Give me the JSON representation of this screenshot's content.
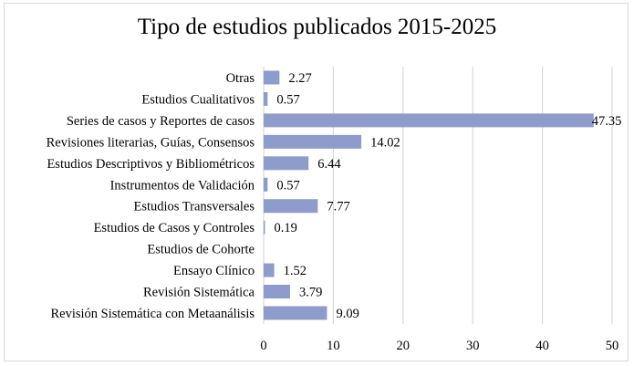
{
  "chart_data": {
    "type": "bar",
    "orientation": "horizontal",
    "title": "Tipo de estudios publicados 2015-2025",
    "xlabel": "",
    "ylabel": "",
    "xlim": [
      0,
      50
    ],
    "x_ticks": [
      0,
      10,
      20,
      30,
      40,
      50
    ],
    "grid": true,
    "legend": "none",
    "bar_color": "#8e9ccb",
    "categories": [
      "Otras",
      "Estudios Cualitativos",
      "Series de casos y Reportes de casos",
      "Revisiones literarias, Guías, Consensos",
      "Estudios Descriptivos y Bibliométricos",
      "Instrumentos de Validación",
      "Estudios Transversales",
      "Estudios de Casos y Controles",
      "Estudios de Cohorte",
      "Ensayo Clínico",
      "Revisión Sistemática",
      "Revisión Sistemática con Metaanálisis"
    ],
    "values": [
      2.27,
      0.57,
      47.35,
      14.02,
      6.44,
      0.57,
      7.77,
      0.19,
      null,
      1.52,
      3.79,
      9.09
    ],
    "data_labels": [
      "2.27",
      "0.57",
      "47.35",
      "14.02",
      "6.44",
      "0.57",
      "7.77",
      "0.19",
      "",
      "1.52",
      "3.79",
      "9.09"
    ]
  }
}
